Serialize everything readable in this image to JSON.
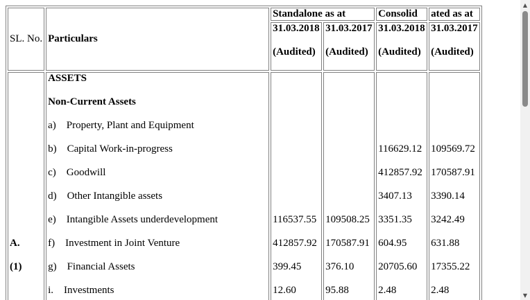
{
  "table": {
    "headers": {
      "sl_no": "SL. No.",
      "particulars": "Particulars",
      "standalone": "Standalone as at",
      "consolid_part1": "Consolid",
      "consolid_part2": "ated as at",
      "dates": [
        "31.03.2018",
        "31.03.2017",
        "31.03.2018",
        "31.03.2017"
      ],
      "audited": [
        "(Audited)",
        "(Audited)",
        "(Audited)",
        "(Audited)"
      ]
    },
    "sl_labels": [
      "A.",
      "(1)"
    ],
    "section_heading": "ASSETS",
    "subsection_heading": "Non-Current Assets",
    "rows": [
      {
        "label": "a)    Property, Plant and Equipment",
        "c1": "",
        "c2": "",
        "c3": "",
        "c4": ""
      },
      {
        "label": "b)    Capital Work-in-progress",
        "c1": "",
        "c2": "",
        "c3": "116629.12",
        "c4": "109569.72"
      },
      {
        "label": "c)    Goodwill",
        "c1": "",
        "c2": "",
        "c3": "412857.92",
        "c4": "170587.91"
      },
      {
        "label": "d)    Other Intangible assets",
        "c1": "",
        "c2": "",
        "c3": "3407.13",
        "c4": "3390.14"
      },
      {
        "label": "e)    Intangible Assets underdevelopment",
        "c1": "116537.55",
        "c2": "109508.25",
        "c3": "3351.35",
        "c4": "3242.49"
      },
      {
        "label": "f)    Investment in Joint Venture",
        "c1": "412857.92",
        "c2": "170587.91",
        "c3": "604.95",
        "c4": "631.88"
      },
      {
        "label": "g)    Financial Assets",
        "c1": "399.45",
        "c2": "376.10",
        "c3": "20705.60",
        "c4": "17355.22"
      },
      {
        "label": "i.    Investments",
        "c1": "12.60",
        "c2": "95.88",
        "c3": "2.48",
        "c4": "2.48"
      }
    ]
  },
  "scrollbar": {
    "up_icon": "scroll-up-arrow-icon",
    "down_icon": "scroll-down-arrow-icon"
  }
}
